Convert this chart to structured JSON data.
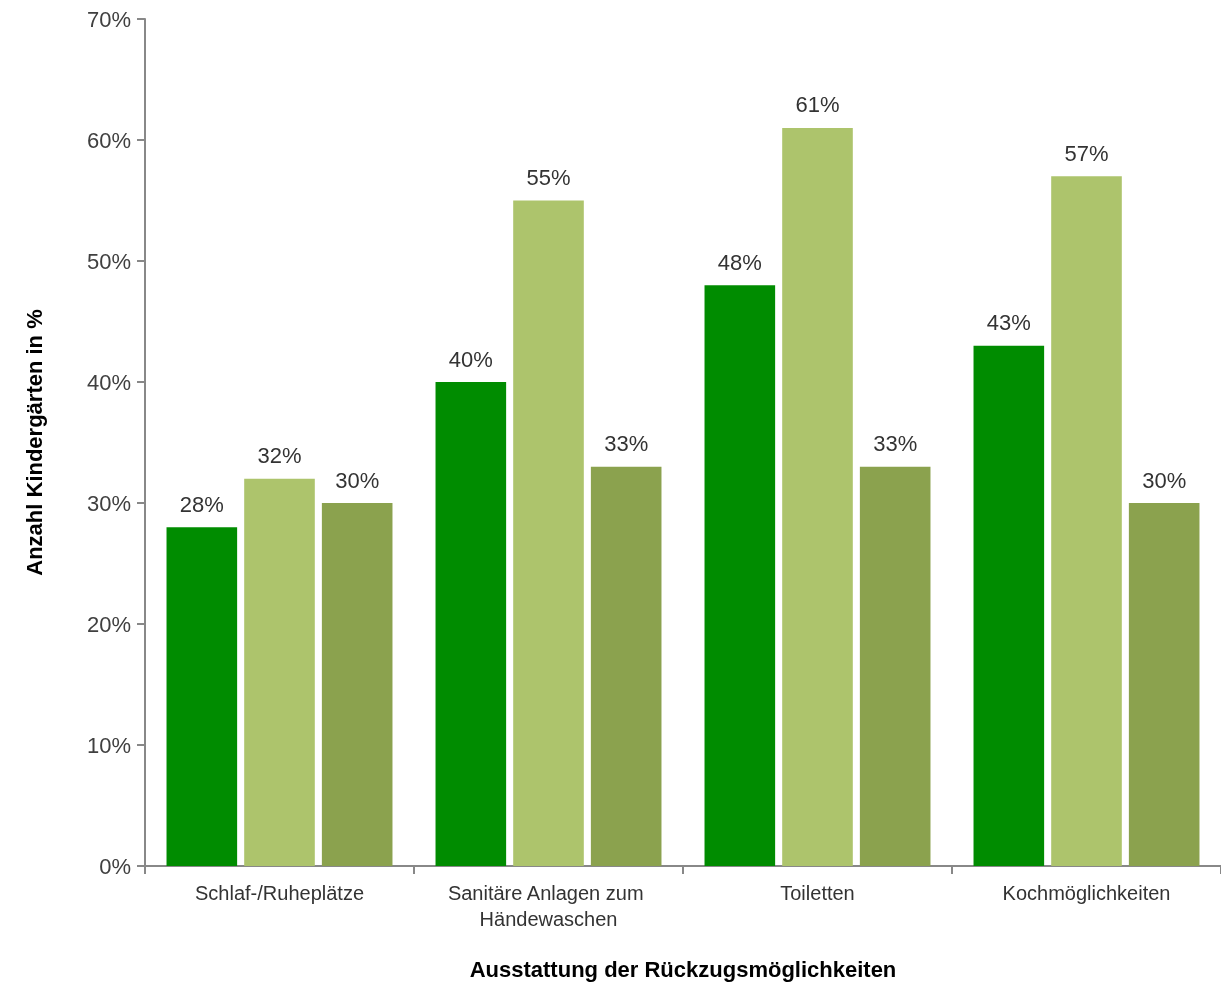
{
  "chart_data": {
    "type": "bar",
    "xlabel": "Ausstattung der Rückzugsmöglichkeiten",
    "ylabel": "Anzahl Kindergärten in %",
    "categories": [
      "Schlaf-/Ruheplätze",
      "Sanitäre Anlagen zum Händewaschen",
      "Toiletten",
      "Kochmöglichkeiten"
    ],
    "series": [
      {
        "color": "#008c00",
        "values": [
          28,
          40,
          48,
          43
        ],
        "value_labels": [
          "28%",
          "40%",
          "48%",
          "43%"
        ]
      },
      {
        "color": "#adc46c",
        "values": [
          32,
          55,
          61,
          57
        ],
        "value_labels": [
          "32%",
          "55%",
          "61%",
          "57%"
        ]
      },
      {
        "color": "#8ba24e",
        "values": [
          30,
          33,
          33,
          30
        ],
        "value_labels": [
          "30%",
          "33%",
          "33%",
          "30%"
        ]
      }
    ],
    "ylim": [
      0,
      70
    ],
    "yticks": [
      {
        "value": 0,
        "label": "0%"
      },
      {
        "value": 10,
        "label": "10%"
      },
      {
        "value": 20,
        "label": "20%"
      },
      {
        "value": 30,
        "label": "30%"
      },
      {
        "value": 40,
        "label": "40%"
      },
      {
        "value": 50,
        "label": "50%"
      },
      {
        "value": 60,
        "label": "60%"
      },
      {
        "value": 70,
        "label": "70%"
      }
    ],
    "grid": false
  }
}
